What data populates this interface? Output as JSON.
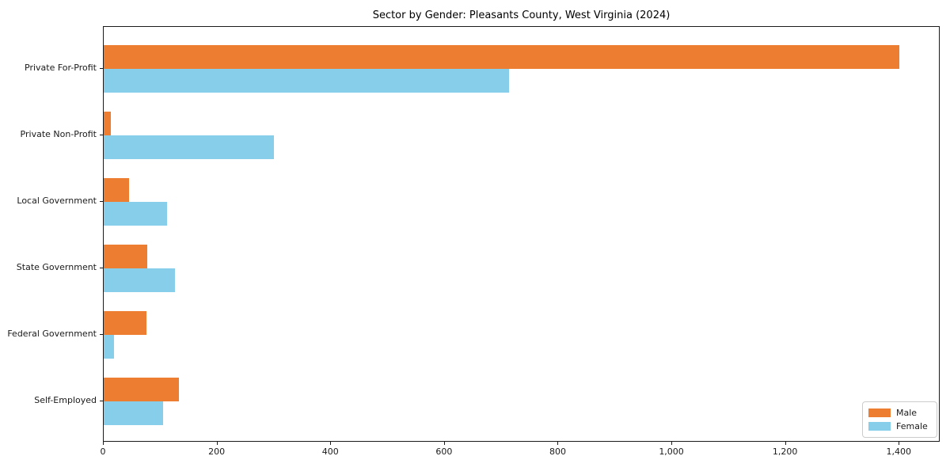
{
  "figure": {
    "background": "#ffffff",
    "axis_color": "#1a1a1a"
  },
  "chart_data": {
    "type": "bar",
    "orientation": "horizontal",
    "title": "Sector by Gender: Pleasants County, West Virginia (2024)",
    "xlabel": "",
    "ylabel": "",
    "grid": false,
    "categories": [
      "Private For-Profit",
      "Private Non-Profit",
      "Local Government",
      "State Government",
      "Federal Government",
      "Self-Employed"
    ],
    "series": [
      {
        "name": "Male",
        "color": "#ED7D31",
        "values": [
          1400,
          13,
          44,
          76,
          75,
          132
        ]
      },
      {
        "name": "Female",
        "color": "#87CEEB",
        "values": [
          713,
          300,
          111,
          125,
          18,
          105
        ]
      }
    ],
    "xlim": [
      0,
      1472
    ],
    "xticks": [
      0,
      200,
      400,
      600,
      800,
      1000,
      1200,
      1400
    ],
    "xtick_labels": [
      "0",
      "200",
      "400",
      "600",
      "800",
      "1,000",
      "1,200",
      "1,400"
    ],
    "legend": {
      "position": "lower right",
      "entries": [
        "Male",
        "Female"
      ]
    }
  }
}
